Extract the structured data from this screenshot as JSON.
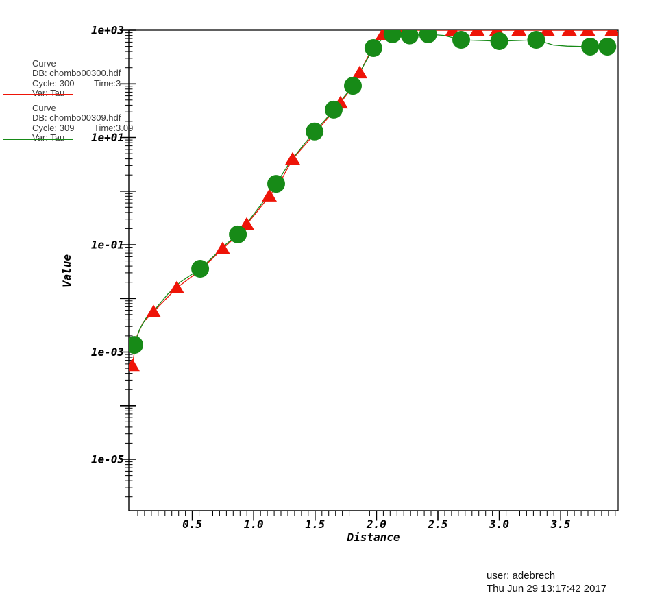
{
  "window": {
    "background": "#ffffff"
  },
  "legend": {
    "curves": [
      {
        "heading": "Curve",
        "db": "DB: chombo00300.hdf",
        "cycle": "Cycle: 300",
        "time": "Time:3",
        "var": "Var: Tau",
        "color": "#ee1408"
      },
      {
        "heading": "Curve",
        "db": "DB: chombo00309.hdf",
        "cycle": "Cycle: 309",
        "time": "Time:3.09",
        "var": "Var: Tau",
        "color": "#178a17"
      }
    ]
  },
  "footer": {
    "user": "user: adebrech",
    "timestamp": "Thu Jun 29 13:17:42 2017"
  },
  "chart_data": {
    "type": "line",
    "title": "",
    "xlabel": "Distance",
    "ylabel": "Value",
    "x_axis": {
      "min": 0,
      "max": 3.95,
      "major_ticks": [
        0.5,
        1.0,
        1.5,
        2.0,
        2.5,
        3.0,
        3.5
      ],
      "major_tick_labels": [
        "0.5",
        "1.0",
        "1.5",
        "2.0",
        "2.5",
        "3.0",
        "3.5"
      ],
      "minor_divisions_per_major": 9
    },
    "y_axis": {
      "scale": "log10",
      "top_exp": 3,
      "bottom_exp": -6,
      "labeled_ticks": [
        {
          "exp": 3,
          "label": "1e+03"
        },
        {
          "exp": 1,
          "label": "1e+01"
        },
        {
          "exp": -1,
          "label": "1e-01"
        },
        {
          "exp": -3,
          "label": "1e-03"
        },
        {
          "exp": -5,
          "label": "1e-05"
        }
      ]
    },
    "series": [
      {
        "name": "Tau (DB chombo00300.hdf, cycle 300, time 3)",
        "color": "#ee1408",
        "marker": "triangle",
        "line_points": [
          [
            0.011,
            0.00056
          ],
          [
            0.05,
            0.002
          ],
          [
            0.1,
            0.0036
          ],
          [
            0.184,
            0.0056
          ],
          [
            0.28,
            0.0095
          ],
          [
            0.374,
            0.0157
          ],
          [
            0.56,
            0.033
          ],
          [
            0.748,
            0.084
          ],
          [
            0.86,
            0.145
          ],
          [
            0.943,
            0.24
          ],
          [
            1.03,
            0.42
          ],
          [
            1.127,
            0.81
          ],
          [
            1.22,
            1.55
          ],
          [
            1.317,
            3.95
          ],
          [
            1.5,
            12
          ],
          [
            1.63,
            27
          ],
          [
            1.707,
            44
          ],
          [
            1.79,
            80
          ],
          [
            1.864,
            161
          ],
          [
            1.93,
            320
          ],
          [
            2.0,
            650
          ],
          [
            2.05,
            820
          ],
          [
            2.09,
            1000
          ],
          [
            3.95,
            1000
          ]
        ],
        "marker_points": [
          [
            0.011,
            0.00056
          ],
          [
            0.184,
            0.0056
          ],
          [
            0.374,
            0.0157
          ],
          [
            0.748,
            0.084
          ],
          [
            0.943,
            0.24
          ],
          [
            1.127,
            0.81
          ],
          [
            1.317,
            3.95
          ],
          [
            1.707,
            44
          ],
          [
            1.864,
            161
          ],
          [
            2.05,
            820
          ],
          [
            2.2,
            1000
          ],
          [
            2.62,
            1000
          ],
          [
            2.82,
            1000
          ],
          [
            2.98,
            1000
          ],
          [
            3.16,
            1000
          ],
          [
            3.39,
            1000
          ],
          [
            3.57,
            1000
          ],
          [
            3.72,
            1000
          ],
          [
            3.92,
            1000
          ]
        ]
      },
      {
        "name": "Tau (DB chombo00309.hdf, cycle 309, time 3.09)",
        "color": "#178a17",
        "marker": "circle",
        "line_points": [
          [
            0.028,
            0.00136
          ],
          [
            0.07,
            0.0026
          ],
          [
            0.12,
            0.0042
          ],
          [
            0.21,
            0.0068
          ],
          [
            0.3,
            0.012
          ],
          [
            0.4,
            0.02
          ],
          [
            0.564,
            0.0357
          ],
          [
            0.67,
            0.06
          ],
          [
            0.76,
            0.096
          ],
          [
            0.871,
            0.156
          ],
          [
            0.96,
            0.28
          ],
          [
            1.07,
            0.6
          ],
          [
            1.183,
            1.37
          ],
          [
            1.3,
            3.6
          ],
          [
            1.4,
            7.0
          ],
          [
            1.496,
            12.9
          ],
          [
            1.58,
            21
          ],
          [
            1.652,
            33
          ],
          [
            1.73,
            55
          ],
          [
            1.808,
            92
          ],
          [
            1.9,
            230
          ],
          [
            1.975,
            465
          ],
          [
            2.05,
            700
          ],
          [
            2.13,
            840
          ],
          [
            2.27,
            800
          ],
          [
            2.42,
            840
          ],
          [
            2.55,
            800
          ],
          [
            2.69,
            662
          ],
          [
            3.0,
            625
          ],
          [
            3.3,
            662
          ],
          [
            3.44,
            530
          ],
          [
            3.55,
            505
          ],
          [
            3.74,
            493
          ],
          [
            3.88,
            493
          ],
          [
            3.95,
            500
          ]
        ],
        "marker_points": [
          [
            0.028,
            0.00136
          ],
          [
            0.564,
            0.0357
          ],
          [
            0.871,
            0.156
          ],
          [
            1.183,
            1.37
          ],
          [
            1.496,
            12.9
          ],
          [
            1.652,
            33
          ],
          [
            1.808,
            92
          ],
          [
            1.975,
            465
          ],
          [
            2.13,
            840
          ],
          [
            2.27,
            800
          ],
          [
            2.42,
            840
          ],
          [
            2.69,
            662
          ],
          [
            3.0,
            625
          ],
          [
            3.3,
            662
          ],
          [
            3.74,
            493
          ],
          [
            3.88,
            493
          ]
        ]
      }
    ]
  }
}
